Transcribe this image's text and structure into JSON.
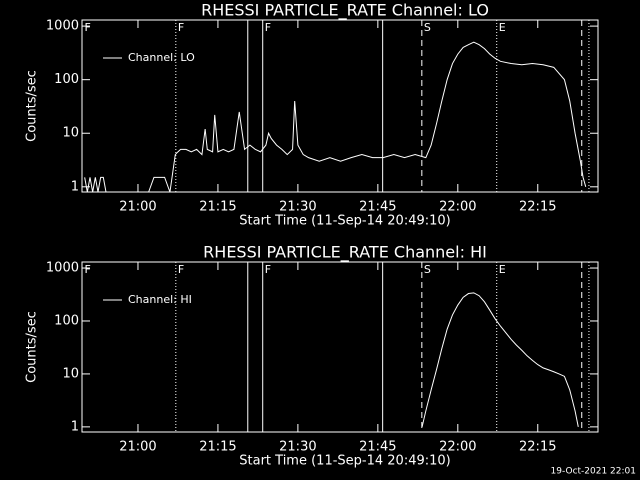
{
  "chart_data": [
    {
      "type": "line",
      "title": "RHESSI PARTICLE_RATE Channel: LO",
      "xlabel": "Start Time (11-Sep-14 20:49:10)",
      "ylabel": "Counts/sec",
      "log_y": true,
      "xlim": [
        1249.5,
        1346.3
      ],
      "ylim": [
        0.8,
        1300
      ],
      "xticks": [
        {
          "value": 1260,
          "label": "21:00"
        },
        {
          "value": 1275,
          "label": "21:15"
        },
        {
          "value": 1290,
          "label": "21:30"
        },
        {
          "value": 1305,
          "label": "21:45"
        },
        {
          "value": 1320,
          "label": "22:00"
        },
        {
          "value": 1335,
          "label": "22:15"
        }
      ],
      "yticks": [
        1,
        10,
        100,
        1000
      ],
      "legend": "upper left",
      "series": [
        {
          "name": "Channel: LO",
          "color": "#ffffff",
          "x": [
            1250,
            1250.5,
            1251,
            1251.5,
            1252,
            1252.5,
            1253,
            1253.5,
            1254,
            1255,
            1256,
            1257,
            1258,
            1259,
            1260,
            1261,
            1262,
            1263,
            1264,
            1265,
            1266,
            1267,
            1267.5,
            1268,
            1269,
            1270,
            1271,
            1272,
            1272.6,
            1273,
            1274,
            1274.4,
            1275,
            1276,
            1277,
            1278,
            1279,
            1280,
            1281,
            1282,
            1283,
            1284,
            1284.5,
            1285,
            1286,
            1287,
            1288,
            1289,
            1289.4,
            1290,
            1291,
            1292,
            1294,
            1296,
            1298,
            1300,
            1302,
            1304,
            1306,
            1308,
            1310,
            1312,
            1314,
            1315,
            1316,
            1317,
            1318,
            1319,
            1320,
            1321,
            1322,
            1323,
            1324,
            1325,
            1326,
            1327,
            1328,
            1330,
            1332,
            1334,
            1336,
            1338,
            1340,
            1341,
            1342,
            1343,
            1343.5,
            1344
          ],
          "values": [
            1.5,
            0.8,
            1.5,
            0.8,
            1.5,
            0.8,
            1.5,
            1.5,
            0.8,
            0.8,
            0.8,
            0.8,
            0.8,
            0.8,
            0.8,
            0.8,
            0.8,
            1.5,
            1.5,
            1.5,
            0.8,
            4,
            4.5,
            5,
            5,
            4.5,
            5,
            4,
            12,
            5,
            4.5,
            22,
            4.5,
            5,
            4.5,
            5,
            25,
            5,
            6,
            5,
            4.5,
            6,
            10,
            8,
            6,
            5,
            4,
            5,
            40,
            6,
            4,
            3.5,
            3,
            3.5,
            3,
            3.5,
            4,
            3.5,
            3.5,
            4,
            3.5,
            4,
            3.5,
            6,
            15,
            40,
            100,
            200,
            300,
            400,
            450,
            500,
            450,
            380,
            300,
            250,
            220,
            200,
            190,
            200,
            190,
            170,
            100,
            40,
            10,
            3,
            1.5,
            1
          ]
        }
      ],
      "annotations": [
        {
          "x": 1249.6,
          "label": "F"
        },
        {
          "x": 1267.1,
          "style": "dotted",
          "label": "F"
        },
        {
          "x": 1280.6,
          "style": "solid"
        },
        {
          "x": 1283.4,
          "style": "solid",
          "label": "F"
        },
        {
          "x": 1305.9,
          "style": "solid"
        },
        {
          "x": 1313.25,
          "style": "dashed",
          "label": "S"
        },
        {
          "x": 1327.3,
          "style": "dotted",
          "label": "E"
        },
        {
          "x": 1343.25,
          "style": "dashed"
        },
        {
          "x": 1344.6,
          "style": "dotted"
        }
      ]
    },
    {
      "type": "line",
      "title": "RHESSI PARTICLE_RATE Channel: HI",
      "xlabel": "Start Time (11-Sep-14 20:49:10)",
      "ylabel": "Counts/sec",
      "log_y": true,
      "xlim": [
        1249.5,
        1346.3
      ],
      "ylim": [
        0.8,
        1300
      ],
      "xticks": [
        {
          "value": 1260,
          "label": "21:00"
        },
        {
          "value": 1275,
          "label": "21:15"
        },
        {
          "value": 1290,
          "label": "21:30"
        },
        {
          "value": 1305,
          "label": "21:45"
        },
        {
          "value": 1320,
          "label": "22:00"
        },
        {
          "value": 1335,
          "label": "22:15"
        }
      ],
      "yticks": [
        1,
        10,
        100,
        1000
      ],
      "legend": "upper left",
      "series": [
        {
          "name": "Channel: HI",
          "color": "#ffffff",
          "x": [
            1313.3,
            1314,
            1315,
            1316,
            1317,
            1318,
            1319,
            1320,
            1321,
            1322,
            1323,
            1324,
            1325,
            1326,
            1327,
            1328,
            1329,
            1330,
            1331,
            1332,
            1333,
            1334,
            1335,
            1336,
            1337,
            1338,
            1339,
            1340,
            1341,
            1342,
            1342.6
          ],
          "values": [
            1,
            2,
            5,
            12,
            30,
            70,
            130,
            200,
            280,
            330,
            340,
            300,
            230,
            160,
            110,
            80,
            60,
            45,
            35,
            28,
            22,
            18,
            15,
            13,
            12,
            11,
            10,
            9,
            5,
            2,
            1
          ]
        }
      ],
      "annotations": [
        {
          "x": 1249.6,
          "label": "F"
        },
        {
          "x": 1267.1,
          "style": "dotted",
          "label": "F"
        },
        {
          "x": 1280.6,
          "style": "solid"
        },
        {
          "x": 1283.4,
          "style": "solid",
          "label": "F"
        },
        {
          "x": 1305.9,
          "style": "solid"
        },
        {
          "x": 1313.25,
          "style": "dashed",
          "label": "S"
        },
        {
          "x": 1327.3,
          "style": "dotted",
          "label": "E"
        },
        {
          "x": 1343.25,
          "style": "dashed"
        },
        {
          "x": 1344.6,
          "style": "dotted"
        }
      ]
    }
  ],
  "footer": "19-Oct-2021 22:01"
}
